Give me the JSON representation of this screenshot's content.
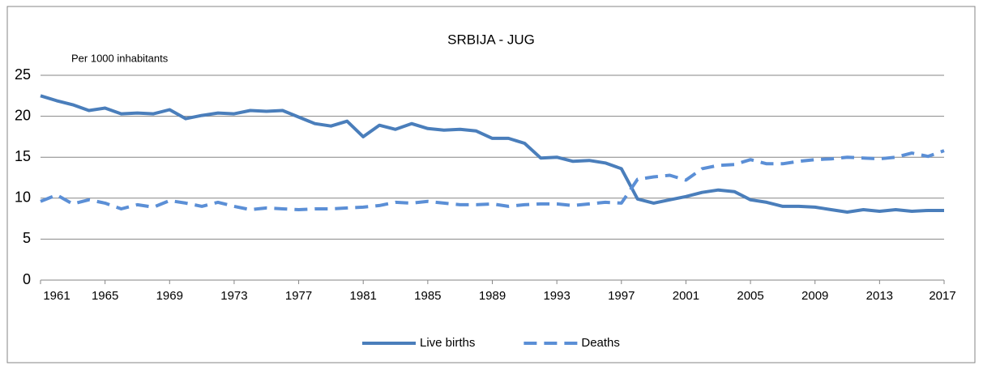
{
  "chart_data": {
    "type": "line",
    "title": "SRBIJA - JUG",
    "y_axis_label": "Per 1000 inhabitants",
    "x": [
      1961,
      1962,
      1963,
      1964,
      1965,
      1966,
      1967,
      1968,
      1969,
      1970,
      1971,
      1972,
      1973,
      1974,
      1975,
      1976,
      1977,
      1978,
      1979,
      1980,
      1981,
      1982,
      1983,
      1984,
      1985,
      1986,
      1987,
      1988,
      1989,
      1990,
      1991,
      1992,
      1993,
      1994,
      1995,
      1996,
      1997,
      1998,
      1999,
      2000,
      2001,
      2002,
      2003,
      2004,
      2005,
      2006,
      2007,
      2008,
      2009,
      2010,
      2011,
      2012,
      2013,
      2014,
      2015,
      2016,
      2017
    ],
    "series": [
      {
        "name": "Live births",
        "color": "#4a7ebb",
        "dash": false,
        "values": [
          22.5,
          21.9,
          21.4,
          20.7,
          21.0,
          20.3,
          20.4,
          20.3,
          20.8,
          19.7,
          20.1,
          20.4,
          20.3,
          20.7,
          20.6,
          20.7,
          19.9,
          19.1,
          18.8,
          19.4,
          17.5,
          18.9,
          18.4,
          19.1,
          18.5,
          18.3,
          18.4,
          18.2,
          17.3,
          17.3,
          16.7,
          14.9,
          15.0,
          14.5,
          14.6,
          14.3,
          13.6,
          9.9,
          9.4,
          9.8,
          10.2,
          10.7,
          11.0,
          10.8,
          9.8,
          9.5,
          9.0,
          9.0,
          8.9,
          8.6,
          8.3,
          8.6,
          8.4,
          8.6,
          8.4,
          8.5,
          8.5
        ]
      },
      {
        "name": "Deaths",
        "color": "#5b8fd6",
        "dash": true,
        "values": [
          9.6,
          10.4,
          9.3,
          9.8,
          9.4,
          8.7,
          9.2,
          8.9,
          9.7,
          9.4,
          9.0,
          9.5,
          9.0,
          8.6,
          8.8,
          8.7,
          8.6,
          8.7,
          8.7,
          8.8,
          8.9,
          9.1,
          9.5,
          9.4,
          9.6,
          9.4,
          9.2,
          9.2,
          9.3,
          9.0,
          9.2,
          9.3,
          9.3,
          9.1,
          9.3,
          9.5,
          9.4,
          12.3,
          12.6,
          12.8,
          12.2,
          13.6,
          14.0,
          14.1,
          14.7,
          14.2,
          14.2,
          14.5,
          14.7,
          14.8,
          15.0,
          14.9,
          14.8,
          15.0,
          15.5,
          15.1,
          15.8
        ]
      }
    ],
    "xlim": [
      1961,
      2017
    ],
    "xticks": [
      1961,
      1965,
      1969,
      1973,
      1977,
      1981,
      1985,
      1989,
      1993,
      1997,
      2001,
      2005,
      2009,
      2013,
      2017
    ],
    "ylim": [
      0,
      25
    ],
    "yticks": [
      0,
      5,
      10,
      15,
      20,
      25
    ],
    "grid": true,
    "legend": "bottom"
  }
}
